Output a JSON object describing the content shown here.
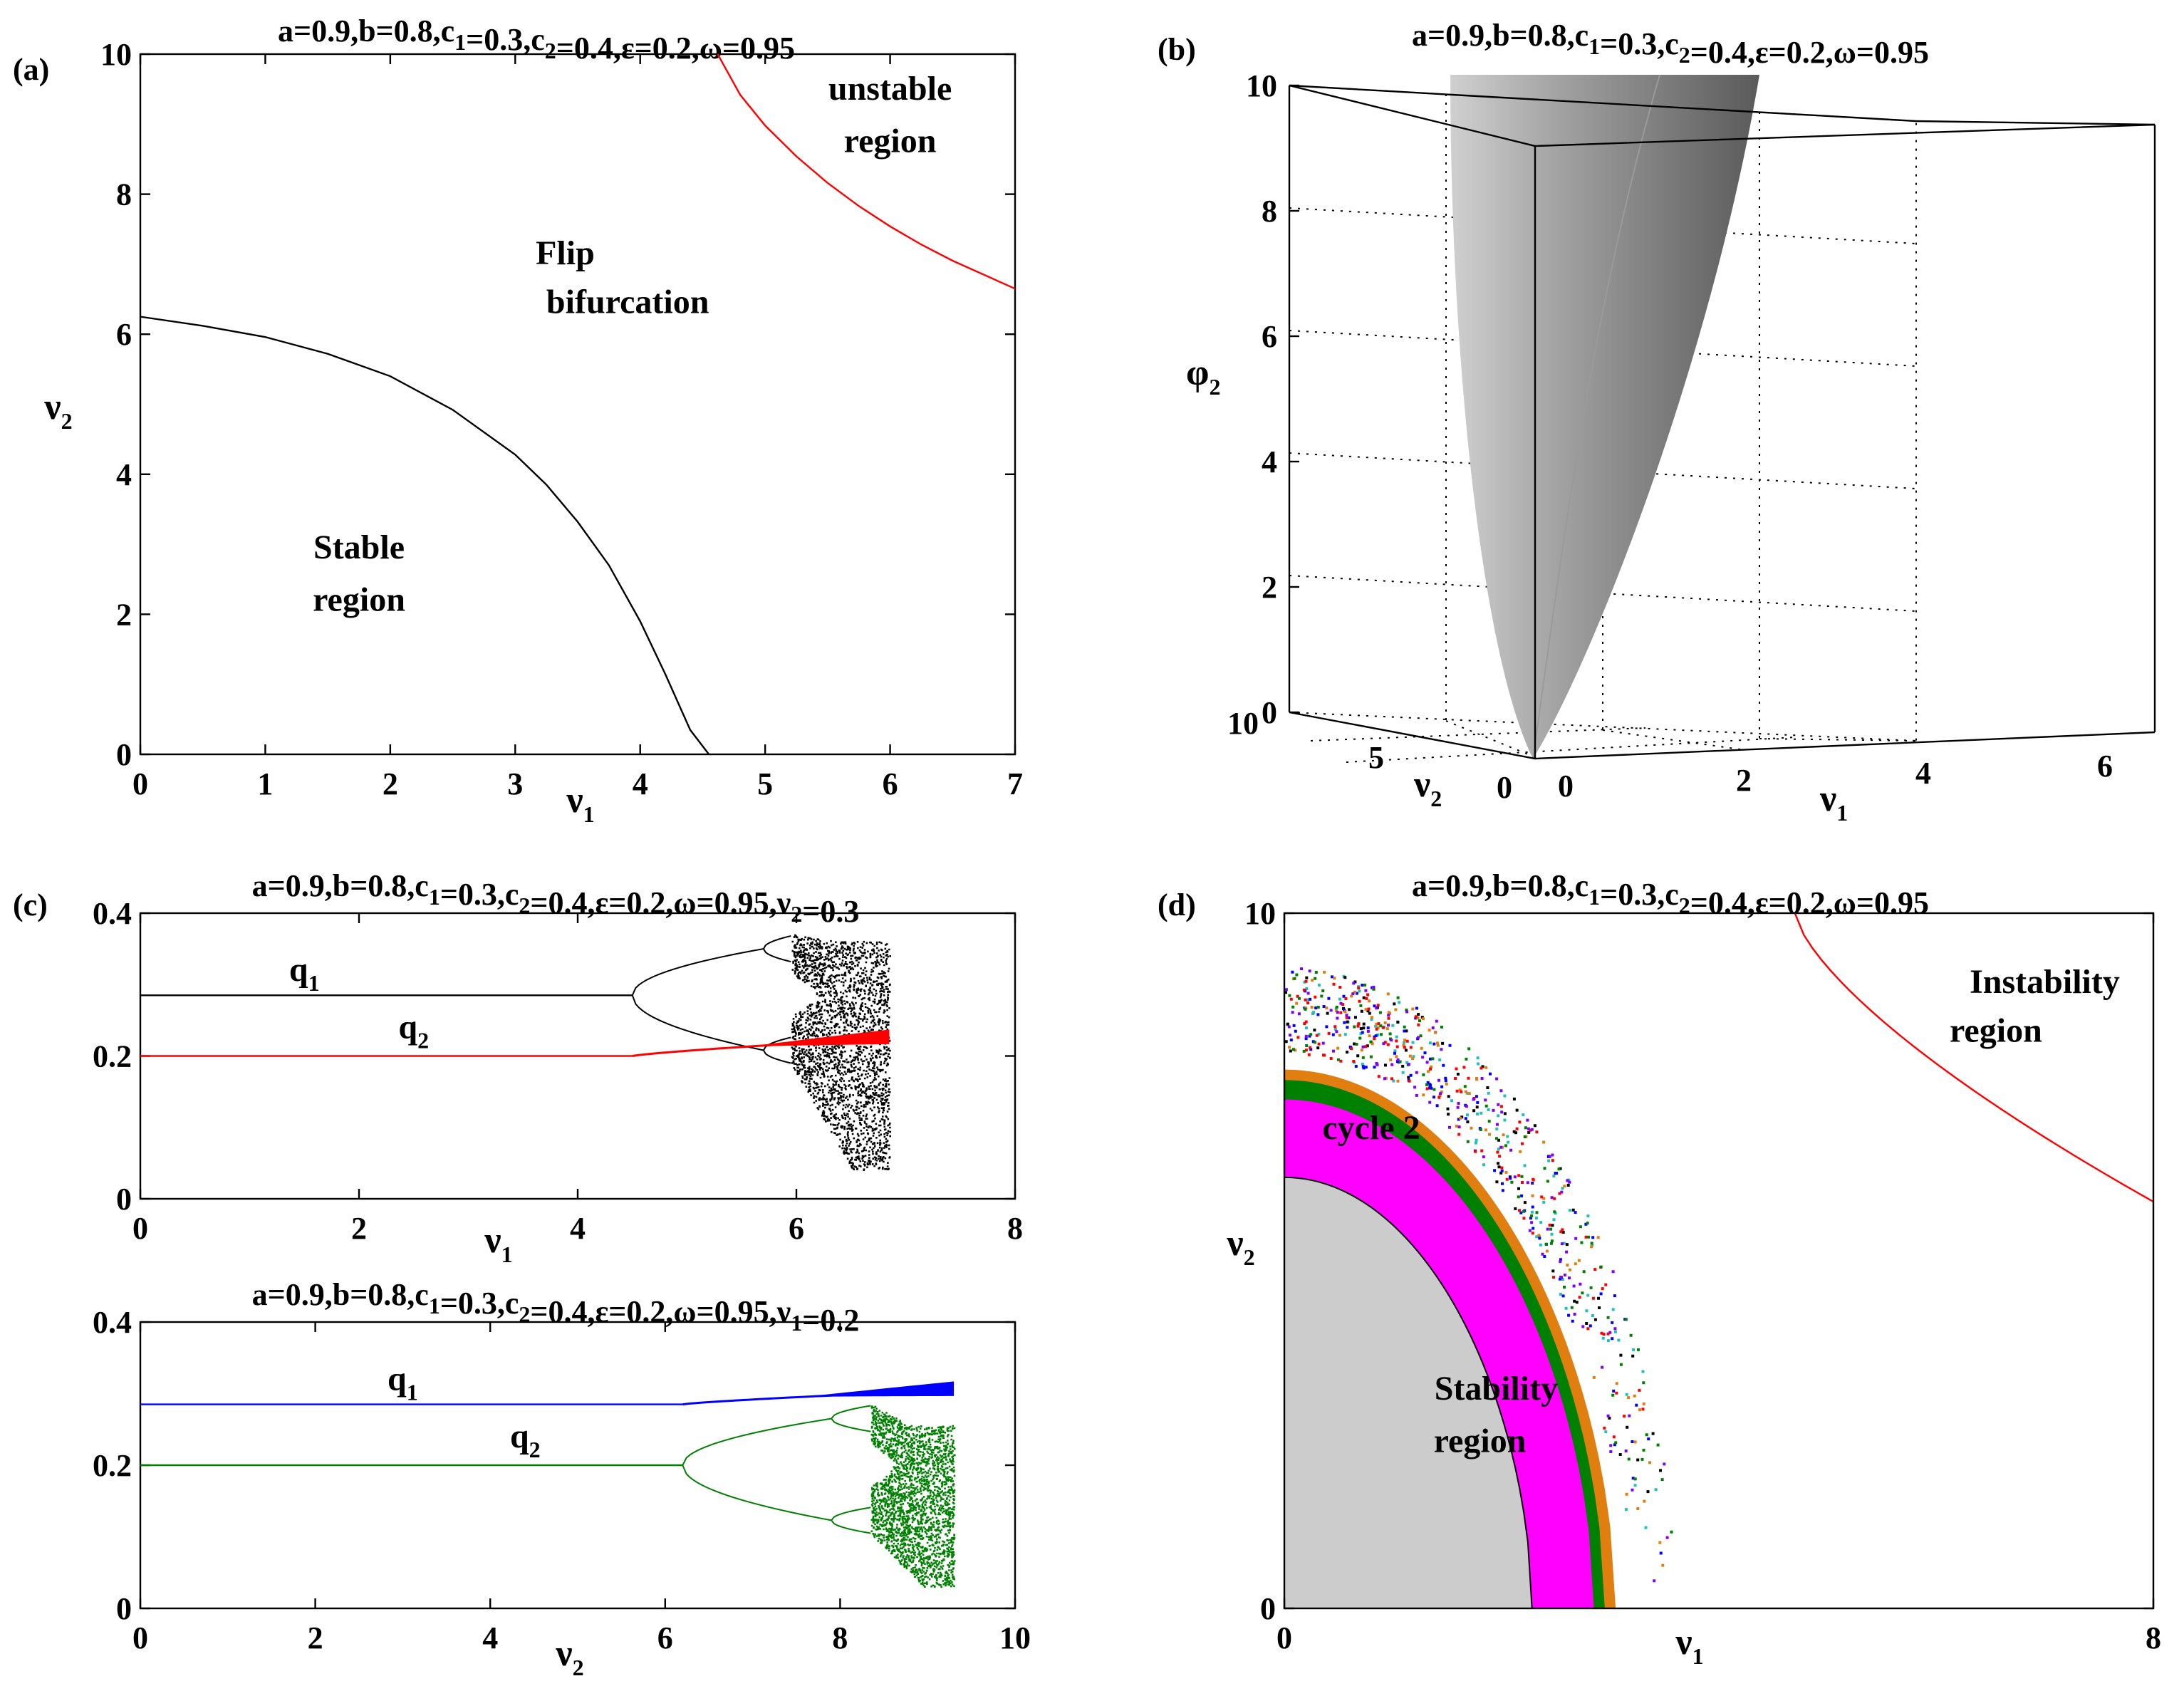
{
  "chart_data": [
    {
      "id": "a",
      "panel_label": "(a)",
      "type": "line",
      "title": "a=0.9,b=0.8,c_1=0.3,c_2=0.4,ε=0.2,ω=0.95",
      "xlabel": "ν_1",
      "ylabel": "ν_2",
      "xlim": [
        0,
        7
      ],
      "ylim": [
        0,
        10
      ],
      "xticks": [
        0,
        1,
        2,
        3,
        4,
        5,
        6,
        7
      ],
      "yticks": [
        0,
        2,
        4,
        6,
        8,
        10
      ],
      "series": [
        {
          "name": "flip boundary",
          "color": "#000000",
          "x": [
            0,
            0.5,
            1,
            1.5,
            2,
            2.5,
            3,
            3.25,
            3.5,
            3.75,
            4,
            4.2,
            4.4,
            4.55
          ],
          "y": [
            6.25,
            6.12,
            5.96,
            5.72,
            5.4,
            4.92,
            4.28,
            3.85,
            3.32,
            2.7,
            1.9,
            1.15,
            0.35,
            0
          ]
        },
        {
          "name": "instability boundary",
          "color": "#ff0000",
          "x": [
            4.62,
            4.8,
            5,
            5.25,
            5.5,
            5.75,
            6,
            6.25,
            6.5,
            7
          ],
          "y": [
            10,
            9.42,
            8.98,
            8.54,
            8.16,
            7.83,
            7.54,
            7.28,
            7.05,
            6.65
          ]
        }
      ],
      "annotations": [
        {
          "text": "unstable",
          "x": 6.0,
          "y": 9.35
        },
        {
          "text": "region",
          "x": 6.0,
          "y": 8.6
        },
        {
          "text": "Flip",
          "x": 3.4,
          "y": 7.0
        },
        {
          "text": "bifurcation",
          "x": 3.9,
          "y": 6.3
        },
        {
          "text": "Stable",
          "x": 1.75,
          "y": 2.8
        },
        {
          "text": "region",
          "x": 1.75,
          "y": 2.05
        }
      ]
    },
    {
      "id": "b",
      "panel_label": "(b)",
      "type": "surface",
      "title": "a=0.9,b=0.8,c_1=0.3,c_2=0.4,ε=0.2,ω=0.95",
      "zlabel": "φ_2",
      "xlabel": "ν_1",
      "ylabel": "ν_2",
      "zticks": [
        0,
        2,
        4,
        6,
        8,
        10
      ],
      "xticks": [
        0,
        2,
        4,
        6
      ],
      "yticks": [
        0,
        5,
        10
      ],
      "surface_color": "#a8a8a8"
    },
    {
      "id": "c1",
      "panel_label": "(c)",
      "type": "scatter",
      "title": "a=0.9,b=0.8,c_1=0.3,c_2=0.4,ε=0.2,ω=0.95,ν_2=0.3",
      "xlabel": "ν_1",
      "ylabel": "",
      "xlim": [
        0,
        8
      ],
      "ylim": [
        0,
        0.4
      ],
      "xticks": [
        0,
        2,
        4,
        6,
        8
      ],
      "yticks": [
        0,
        0.2,
        0.4
      ],
      "ytick_labels": [
        "0",
        "0.2",
        "0.4"
      ],
      "series": [
        {
          "name": "q_1",
          "color": "#000000",
          "fixed_point": 0.285,
          "flip_at": 4.5,
          "period4_at": 5.7,
          "chaos_at": 5.95,
          "end_at": 6.85,
          "range": [
            0.04,
            0.36
          ]
        },
        {
          "name": "q_2",
          "color": "#ff0000",
          "fixed_point": 0.2,
          "rise_start": 4.5,
          "end_at": 6.85,
          "end_value": 0.225
        }
      ],
      "annotations": [
        {
          "text": "q_1",
          "x": 1.5,
          "y": 0.305
        },
        {
          "text": "q_2",
          "x": 2.5,
          "y": 0.225
        }
      ]
    },
    {
      "id": "c2",
      "panel_label": "",
      "type": "scatter",
      "title": "a=0.9,b=0.8,c_1=0.3,c_2=0.4,ε=0.2,ω=0.95,ν_1=0.2",
      "xlabel": "ν_2",
      "ylabel": "",
      "xlim": [
        0,
        10
      ],
      "ylim": [
        0,
        0.4
      ],
      "xticks": [
        0,
        2,
        4,
        6,
        8,
        10
      ],
      "yticks": [
        0,
        0.2,
        0.4
      ],
      "ytick_labels": [
        "0",
        "0.2",
        "0.4"
      ],
      "series": [
        {
          "name": "q_1",
          "color": "#0000ff",
          "fixed_point": 0.285,
          "rise_start": 6.2,
          "end_at": 9.3,
          "end_value": 0.305
        },
        {
          "name": "q_2",
          "color": "#008000",
          "fixed_point": 0.2,
          "flip_at": 6.2,
          "period4_at": 7.9,
          "chaos_at": 8.35,
          "end_at": 9.3,
          "range": [
            0.03,
            0.255
          ]
        }
      ],
      "annotations": [
        {
          "text": "q_1",
          "x": 3.0,
          "y": 0.305
        },
        {
          "text": "q_2",
          "x": 4.4,
          "y": 0.225
        }
      ]
    },
    {
      "id": "d",
      "panel_label": "(d)",
      "type": "heatmap",
      "title": "a=0.9,b=0.8,c_1=0.3,c_2=0.4,ε=0.2,ω=0.95",
      "xlabel": "ν_1",
      "ylabel": "ν_2",
      "xlim": [
        0,
        8
      ],
      "ylim": [
        0,
        10
      ],
      "xticks": [
        0,
        8
      ],
      "yticks": [
        0,
        10
      ],
      "regions": [
        {
          "name": "Stability region",
          "color": "#cccccc"
        },
        {
          "name": "cycle 2",
          "color": "#ff00ff"
        },
        {
          "name": "cycle 4",
          "color": "#008000"
        },
        {
          "name": "cycle 8",
          "color": "#e07f0f"
        },
        {
          "name": "higher cycles",
          "color": "#20c0c0"
        },
        {
          "name": "instability boundary",
          "color": "#ff0000"
        }
      ],
      "annotations": [
        {
          "text": "Instability",
          "x": 7.0,
          "y": 8.85
        },
        {
          "text": "region",
          "x": 6.55,
          "y": 8.15
        },
        {
          "text": "cycle 2",
          "x": 0.8,
          "y": 6.75
        },
        {
          "text": "Stability",
          "x": 1.95,
          "y": 3.0
        },
        {
          "text": "region",
          "x": 1.8,
          "y": 2.25
        }
      ]
    }
  ]
}
